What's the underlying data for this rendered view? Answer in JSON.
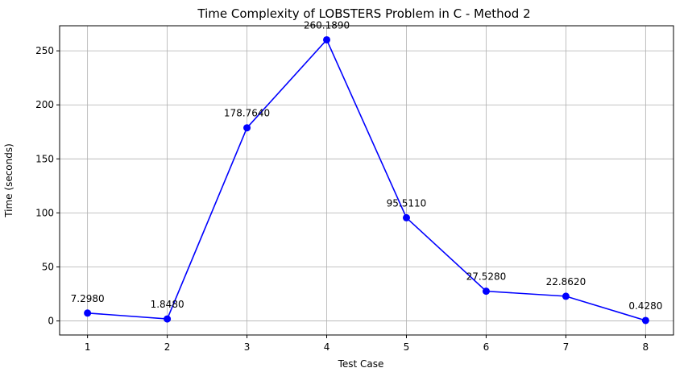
{
  "chart_data": {
    "type": "line",
    "title": "Time Complexity of LOBSTERS Problem in C - Method 2",
    "xlabel": "Test Case",
    "ylabel": "Time (seconds)",
    "x": [
      1,
      2,
      3,
      4,
      5,
      6,
      7,
      8
    ],
    "x_ticks": [
      "1",
      "2",
      "3",
      "4",
      "5",
      "6",
      "7",
      "8"
    ],
    "y_ticks": [
      0,
      50,
      100,
      150,
      200,
      250
    ],
    "xlim": [
      0.65,
      8.35
    ],
    "ylim": [
      -13.0,
      273.2
    ],
    "grid": true,
    "series": [
      {
        "color": "#0000ff",
        "marker": "circle",
        "values": [
          7.298,
          1.848,
          178.764,
          260.189,
          95.511,
          27.528,
          22.862,
          0.428
        ],
        "labels": [
          "7.2980",
          "1.8480",
          "178.7640",
          "260.1890",
          "95.5110",
          "27.5280",
          "22.8620",
          "0.4280"
        ]
      }
    ]
  }
}
